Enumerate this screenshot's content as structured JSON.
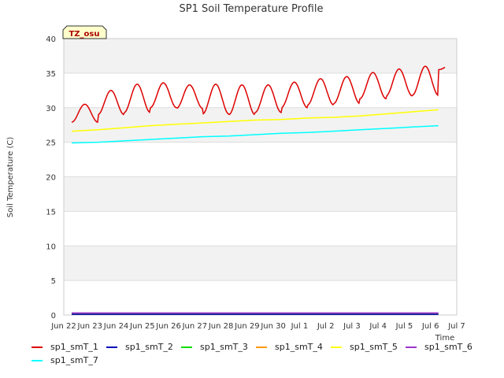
{
  "chart_data": {
    "type": "line",
    "title": "SP1 Soil Temperature Profile",
    "xlabel": "Time",
    "ylabel": "Soil Temperature (C)",
    "ylim": [
      0,
      40
    ],
    "yticks": [
      0,
      5,
      10,
      15,
      20,
      25,
      30,
      35,
      40
    ],
    "xticks": [
      "Jun 22",
      "Jun 23",
      "Jun 24",
      "Jun 25",
      "Jun 26",
      "Jun 27",
      "Jun 28",
      "Jun 29",
      "Jun 30",
      "Jul 1",
      "Jul 2",
      "Jul 3",
      "Jul 4",
      "Jul 5",
      "Jul 6",
      "Jul 7"
    ],
    "grid": true,
    "legend_position": "bottom",
    "annotation": "TZ_osu",
    "x": [
      "Jun 22",
      "Jun 23",
      "Jun 24",
      "Jun 25",
      "Jun 26",
      "Jun 27",
      "Jun 28",
      "Jun 29",
      "Jun 30",
      "Jul 1",
      "Jul 2",
      "Jul 3",
      "Jul 4",
      "Jul 5",
      "Jul 6"
    ],
    "series": [
      {
        "name": "sp1_smT_1",
        "color": "#dd0000",
        "values": [
          30.5,
          32.5,
          33.4,
          33.6,
          33.3,
          33.4,
          33.3,
          33.3,
          33.7,
          34.2,
          34.5,
          35.1,
          35.6,
          36.0,
          36.2
        ],
        "daily_min": [
          27.9,
          29.0,
          29.3,
          30.0,
          29.9,
          29.1,
          29.0,
          29.3,
          30.0,
          30.4,
          30.6,
          31.3,
          31.7,
          31.8,
          35.5
        ]
      },
      {
        "name": "sp1_smT_2",
        "color": "#0000bb",
        "values": [
          0.1,
          0.1,
          0.1,
          0.1,
          0.1,
          0.1,
          0.1,
          0.1,
          0.1,
          0.1,
          0.1,
          0.1,
          0.1,
          0.1,
          0.1
        ]
      },
      {
        "name": "sp1_smT_3",
        "color": "#00dd00",
        "values": [
          0.1,
          0.1,
          0.1,
          0.1,
          0.1,
          0.1,
          0.1,
          0.1,
          0.1,
          0.1,
          0.1,
          0.1,
          0.1,
          0.1,
          0.1
        ]
      },
      {
        "name": "sp1_smT_4",
        "color": "#ff9900",
        "values": [
          0.2,
          0.2,
          0.2,
          0.2,
          0.2,
          0.2,
          0.2,
          0.2,
          0.2,
          0.2,
          0.2,
          0.2,
          0.2,
          0.2,
          0.2
        ]
      },
      {
        "name": "sp1_smT_5",
        "color": "#ffff00",
        "values": [
          26.6,
          26.8,
          27.1,
          27.4,
          27.6,
          27.8,
          28.0,
          28.2,
          28.3,
          28.5,
          28.6,
          28.8,
          29.1,
          29.4,
          29.7
        ]
      },
      {
        "name": "sp1_smT_6",
        "color": "#9933cc",
        "values": [
          0.3,
          0.3,
          0.3,
          0.3,
          0.3,
          0.3,
          0.3,
          0.3,
          0.3,
          0.3,
          0.3,
          0.3,
          0.3,
          0.3,
          0.3
        ]
      },
      {
        "name": "sp1_smT_7",
        "color": "#00ffff",
        "values": [
          24.9,
          25.0,
          25.2,
          25.4,
          25.6,
          25.8,
          25.9,
          26.1,
          26.3,
          26.4,
          26.6,
          26.8,
          27.0,
          27.2,
          27.4
        ]
      }
    ]
  }
}
